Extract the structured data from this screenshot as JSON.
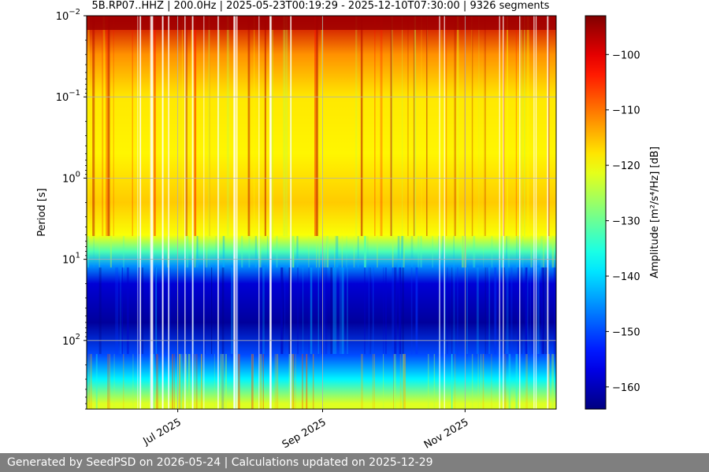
{
  "chart_data": {
    "type": "heatmap",
    "title": "5B.RP07..HHZ | 200.0Hz | 2025-05-23T00:19:29 - 2025-12-10T07:30:00 | 9326 segments",
    "ylabel": "Period [s]",
    "y_scale": "log",
    "y_inverted": true,
    "ylim": [
      0.01,
      700
    ],
    "y_ticks": [
      {
        "value": 0.01,
        "label": "10",
        "exp": "−2"
      },
      {
        "value": 0.1,
        "label": "10",
        "exp": "−1"
      },
      {
        "value": 1,
        "label": "10",
        "exp": "0"
      },
      {
        "value": 10,
        "label": "10",
        "exp": "1"
      },
      {
        "value": 100,
        "label": "10",
        "exp": "2"
      }
    ],
    "x_range": [
      "2025-05-23",
      "2025-12-10"
    ],
    "x_ticks": [
      {
        "date": "2025-07-01",
        "label": "Jul 2025"
      },
      {
        "date": "2025-09-01",
        "label": "Sep 2025"
      },
      {
        "date": "2025-11-01",
        "label": "Nov 2025"
      }
    ],
    "grid": true,
    "colorbar": {
      "label": "Amplitude [m²/s⁴/Hz] [dB]",
      "colormap": "jet",
      "range": [
        -164,
        -93
      ],
      "ticks": [
        -100,
        -110,
        -120,
        -130,
        -140,
        -150,
        -160
      ]
    },
    "approx_amplitude_profile": [
      {
        "period": 0.011,
        "db": -98
      },
      {
        "period": 0.03,
        "db": -112
      },
      {
        "period": 0.1,
        "db": -118
      },
      {
        "period": 0.5,
        "db": -119
      },
      {
        "period": 2,
        "db": -116
      },
      {
        "period": 5,
        "db": -120
      },
      {
        "period": 8,
        "db": -132
      },
      {
        "period": 12,
        "db": -145
      },
      {
        "period": 20,
        "db": -158
      },
      {
        "period": 60,
        "db": -162
      },
      {
        "period": 150,
        "db": -150
      },
      {
        "period": 300,
        "db": -138
      },
      {
        "period": 600,
        "db": -122
      }
    ]
  },
  "footer": {
    "text": "Generated by SeedPSD on 2026-05-24 | Calculations updated on 2025-12-29"
  }
}
